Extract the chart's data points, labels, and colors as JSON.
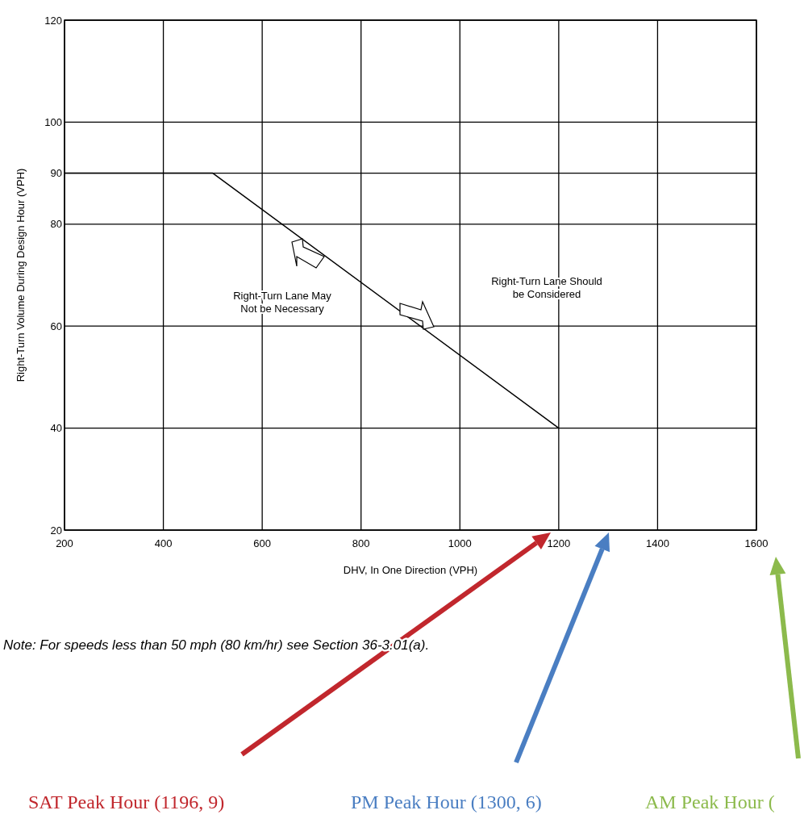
{
  "chart_data": {
    "type": "line",
    "xlabel": "DHV, In One Direction (VPH)",
    "ylabel": "Right-Turn Volume During Design Hour (VPH)",
    "x": [
      200,
      500,
      1200
    ],
    "series": [
      {
        "color": "#000000",
        "values": [
          90,
          90,
          40
        ]
      }
    ],
    "xlim": [
      200,
      1600
    ],
    "ylim": [
      20,
      120
    ],
    "xticks": [
      200,
      400,
      600,
      800,
      1000,
      1200,
      1400,
      1600
    ],
    "yticks": [
      20,
      40,
      60,
      80,
      90,
      100,
      120
    ],
    "grid": true,
    "annotations": [
      "Right-Turn Lane May Not be Necessary",
      "Right-Turn Lane Should be Considered",
      "Note:   For speeds less than 50 mph (80 km/hr) see Section 36-3.01(a).",
      "SAT Peak Hour (1196, 9)",
      "PM Peak Hour (1300, 6)",
      "AM Peak Hour ("
    ]
  }
}
